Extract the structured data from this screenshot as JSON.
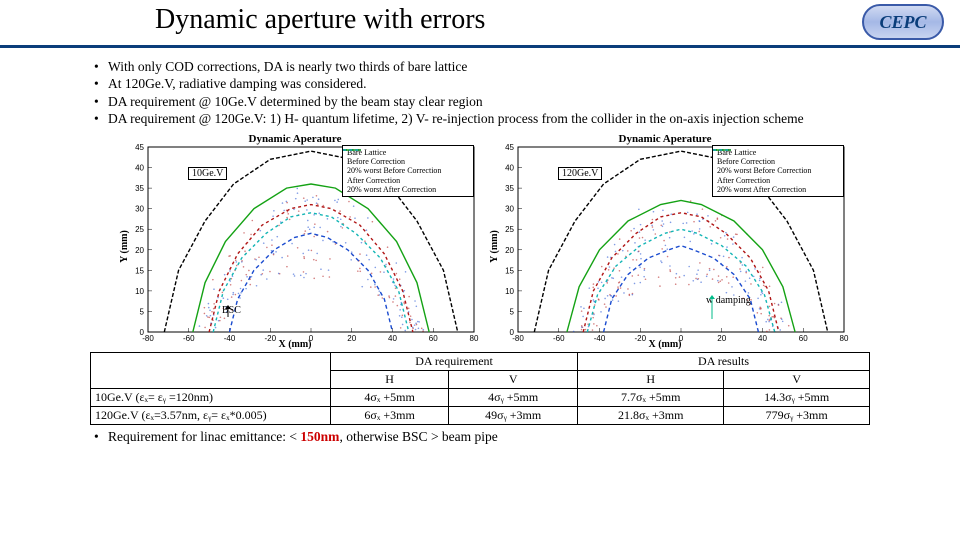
{
  "header": {
    "title": "Dynamic aperture with errors",
    "logo_text": "CEPC"
  },
  "bullets": [
    "With only COD corrections, DA is nearly two thirds of bare lattice",
    "At 120Ge.V, radiative damping was considered.",
    "DA requirement @ 10Ge.V determined by the beam stay clear region",
    "DA requirement @ 120Ge.V: 1) H- quantum lifetime, 2) V- re-injection process from the collider in the on-axis injection scheme"
  ],
  "chart_common": {
    "type": "scatter-envelope",
    "title": "Dynamic Aperature",
    "xlabel": "X (mm)",
    "ylabel": "Y (mm)",
    "xlim": [
      -80,
      80
    ],
    "ylim": [
      0,
      45
    ],
    "xticks": [
      -80,
      -60,
      -40,
      -20,
      0,
      20,
      40,
      60,
      80
    ],
    "yticks": [
      0,
      5,
      10,
      15,
      20,
      25,
      30,
      35,
      40,
      45
    ],
    "background_color": "#ffffff",
    "axis_color": "#000000",
    "colors": {
      "bare_lattice": "#000000",
      "before_correction": "#b01515",
      "worst_before": "#1a4bcf",
      "after_correction": "#14a214",
      "worst_after": "#13b5b5"
    },
    "dash": {
      "bare_lattice": "4 2",
      "before_correction": "3 3",
      "worst_before": "4 3",
      "after_correction": "none",
      "worst_after": "3 3"
    }
  },
  "chart_left": {
    "badge": "10Ge.V",
    "annotation": "BSC",
    "legend": [
      "Bare Lattice",
      "Before Correction",
      "20% worst Before Correction",
      "After Correction",
      "20% worst After Correction"
    ],
    "curves": {
      "bare_lattice": [
        [
          -72,
          0
        ],
        [
          -65,
          15
        ],
        [
          -52,
          27
        ],
        [
          -38,
          36
        ],
        [
          -20,
          42
        ],
        [
          0,
          44
        ],
        [
          20,
          42
        ],
        [
          38,
          36
        ],
        [
          52,
          27
        ],
        [
          65,
          15
        ],
        [
          72,
          0
        ]
      ],
      "before_correction": [
        [
          -50,
          0
        ],
        [
          -45,
          10
        ],
        [
          -36,
          19
        ],
        [
          -24,
          26
        ],
        [
          -10,
          30
        ],
        [
          0,
          31
        ],
        [
          10,
          30
        ],
        [
          24,
          26
        ],
        [
          36,
          19
        ],
        [
          45,
          10
        ],
        [
          50,
          0
        ]
      ],
      "worst_before": [
        [
          -40,
          0
        ],
        [
          -36,
          8
        ],
        [
          -28,
          15
        ],
        [
          -18,
          20
        ],
        [
          -8,
          23
        ],
        [
          0,
          24
        ],
        [
          8,
          23
        ],
        [
          18,
          20
        ],
        [
          28,
          15
        ],
        [
          36,
          8
        ],
        [
          40,
          0
        ]
      ],
      "after_correction": [
        [
          -58,
          0
        ],
        [
          -52,
          12
        ],
        [
          -42,
          22
        ],
        [
          -28,
          30
        ],
        [
          -12,
          35
        ],
        [
          0,
          36
        ],
        [
          12,
          35
        ],
        [
          28,
          30
        ],
        [
          42,
          22
        ],
        [
          52,
          12
        ],
        [
          58,
          0
        ]
      ],
      "worst_after": [
        [
          -48,
          0
        ],
        [
          -43,
          10
        ],
        [
          -34,
          18
        ],
        [
          -22,
          24
        ],
        [
          -10,
          28
        ],
        [
          0,
          29
        ],
        [
          10,
          28
        ],
        [
          22,
          24
        ],
        [
          34,
          18
        ],
        [
          43,
          10
        ],
        [
          48,
          0
        ]
      ]
    }
  },
  "chart_right": {
    "badge": "120Ge.V",
    "annotation": "w damping",
    "legend": [
      "Bare Lattice",
      "Before Correction",
      "20% worst Before Correction",
      "After Correction",
      "20% worst After Correction"
    ],
    "curves": {
      "bare_lattice": [
        [
          -72,
          0
        ],
        [
          -65,
          15
        ],
        [
          -52,
          27
        ],
        [
          -38,
          36
        ],
        [
          -20,
          42
        ],
        [
          0,
          44
        ],
        [
          20,
          42
        ],
        [
          38,
          36
        ],
        [
          52,
          27
        ],
        [
          65,
          15
        ],
        [
          72,
          0
        ]
      ],
      "before_correction": [
        [
          -48,
          0
        ],
        [
          -43,
          10
        ],
        [
          -34,
          18
        ],
        [
          -22,
          24
        ],
        [
          -10,
          28
        ],
        [
          0,
          29
        ],
        [
          10,
          28
        ],
        [
          22,
          24
        ],
        [
          34,
          18
        ],
        [
          43,
          10
        ],
        [
          48,
          0
        ]
      ],
      "worst_before": [
        [
          -38,
          0
        ],
        [
          -34,
          8
        ],
        [
          -26,
          14
        ],
        [
          -16,
          18
        ],
        [
          -6,
          20
        ],
        [
          0,
          21
        ],
        [
          6,
          20
        ],
        [
          16,
          18
        ],
        [
          26,
          14
        ],
        [
          34,
          8
        ],
        [
          38,
          0
        ]
      ],
      "after_correction": [
        [
          -56,
          0
        ],
        [
          -50,
          11
        ],
        [
          -40,
          20
        ],
        [
          -26,
          27
        ],
        [
          -10,
          31
        ],
        [
          0,
          32
        ],
        [
          10,
          31
        ],
        [
          26,
          27
        ],
        [
          40,
          20
        ],
        [
          50,
          11
        ],
        [
          56,
          0
        ]
      ],
      "worst_after": [
        [
          -46,
          0
        ],
        [
          -41,
          9
        ],
        [
          -32,
          16
        ],
        [
          -20,
          21
        ],
        [
          -8,
          24
        ],
        [
          0,
          25
        ],
        [
          8,
          24
        ],
        [
          20,
          21
        ],
        [
          32,
          16
        ],
        [
          41,
          9
        ],
        [
          46,
          0
        ]
      ]
    }
  },
  "table": {
    "header_groups": [
      "DA requirement",
      "DA results"
    ],
    "sub_headers": [
      "H",
      "V",
      "H",
      "V"
    ],
    "rows": [
      {
        "label": "10Ge.V (εₓ= εᵧ =120nm)",
        "cells": [
          "4σₓ +5mm",
          "4σᵧ +5mm",
          "7.7σₓ +5mm",
          "14.3σᵧ +5mm"
        ]
      },
      {
        "label": "120Ge.V (εₓ=3.57nm, εᵧ= εₓ*0.005)",
        "cells": [
          "6σₓ +3mm",
          "49σᵧ +3mm",
          "21.8σₓ +3mm",
          "779σᵧ +3mm"
        ]
      }
    ]
  },
  "footnote": {
    "prefix": "Requirement for linac emittance: < ",
    "highlight": "150nm",
    "suffix": ", otherwise BSC > beam pipe"
  }
}
